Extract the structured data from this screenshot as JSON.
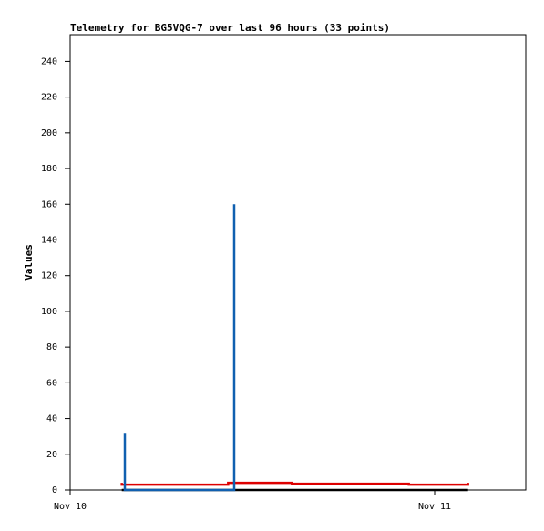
{
  "chart_data": {
    "type": "line",
    "title": "Telemetry for BG5VQG-7 over last 96 hours (33 points)",
    "y_label": "Values",
    "xlim": [
      0,
      30
    ],
    "xticks": [
      {
        "value": 0,
        "label": "Nov 10"
      },
      {
        "value": 24,
        "label": "Nov 11"
      }
    ],
    "ylim": [
      0,
      255
    ],
    "yticks": [
      0,
      20,
      40,
      60,
      80,
      100,
      120,
      140,
      160,
      180,
      200,
      220,
      240
    ],
    "grid": false,
    "series": [
      {
        "color": "#000000",
        "x": [
          3.4,
          26.2
        ],
        "values": [
          0,
          0
        ]
      },
      {
        "color": "#dd0000",
        "x": [
          3.4,
          3.4,
          10.4,
          10.4,
          14.6,
          14.6,
          22.3,
          22.3,
          26.2,
          26.2
        ],
        "values": [
          4,
          3,
          3,
          4,
          4,
          3.5,
          3.5,
          3,
          3,
          4
        ]
      },
      {
        "color": "#1060b0",
        "x": [
          3.6,
          3.6,
          3.6,
          10.8,
          10.8,
          10.8
        ],
        "values": [
          0,
          32,
          0,
          0,
          160,
          0
        ]
      }
    ]
  }
}
